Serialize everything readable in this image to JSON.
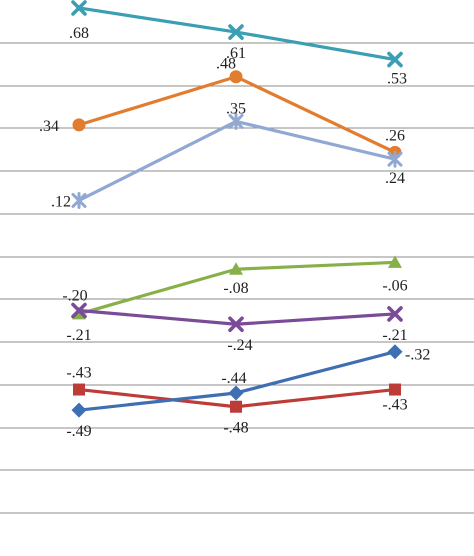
{
  "chart_data": {
    "type": "line",
    "categories": [
      "",
      "",
      ""
    ],
    "ylim": [
      -0.56,
      0.7
    ],
    "grid": true,
    "legend": "none",
    "series": [
      {
        "color": "#3a9fb2",
        "marker": "x-mark",
        "values": [
          0.68,
          0.61,
          0.53
        ],
        "labels": [
          ".68",
          ".61",
          ".53"
        ]
      },
      {
        "color": "#e27c2f",
        "marker": "circle",
        "values": [
          0.34,
          0.48,
          0.26
        ],
        "labels": [
          ".34",
          ".48",
          ".26"
        ]
      },
      {
        "color": "#91a9d2",
        "marker": "star",
        "values": [
          0.12,
          0.35,
          0.24
        ],
        "labels": [
          ".12",
          ".35",
          ".24"
        ]
      },
      {
        "color": "#88b048",
        "marker": "triangle",
        "values": [
          -0.21,
          -0.08,
          -0.06
        ],
        "labels": [
          "-.21",
          "-.08",
          "-.06"
        ]
      },
      {
        "color": "#7a4c98",
        "marker": "x-mark",
        "values": [
          -0.2,
          -0.24,
          -0.21
        ],
        "labels": [
          "-.20",
          "-.24",
          "-.21"
        ]
      },
      {
        "color": "#be3c38",
        "marker": "square",
        "values": [
          -0.43,
          -0.48,
          -0.43
        ],
        "labels": [
          "-.43",
          "-.48",
          "-.43"
        ]
      },
      {
        "color": "#3e6fb2",
        "marker": "diamond",
        "values": [
          -0.49,
          -0.44,
          -0.32
        ],
        "labels": [
          "-.49",
          "-.44",
          "-.32"
        ]
      }
    ]
  }
}
